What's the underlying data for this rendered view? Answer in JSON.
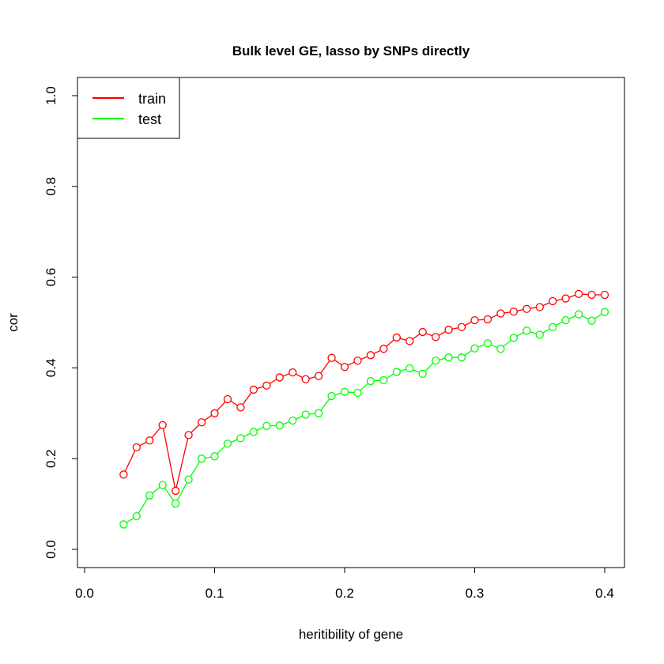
{
  "chart_data": {
    "type": "line",
    "title": "Bulk level GE, lasso by SNPs directly",
    "xlabel": "heritibility of gene",
    "ylabel": "cor",
    "xlim": [
      0.0,
      0.4
    ],
    "ylim": [
      0.0,
      1.0
    ],
    "x_ticks": [
      "0.0",
      "0.1",
      "0.2",
      "0.3",
      "0.4"
    ],
    "y_ticks": [
      "0.0",
      "0.2",
      "0.4",
      "0.6",
      "0.8",
      "1.0"
    ],
    "legend_position": "top-left",
    "grid": false,
    "x": [
      0.03,
      0.04,
      0.05,
      0.06,
      0.07,
      0.08,
      0.09,
      0.1,
      0.11,
      0.12,
      0.13,
      0.14,
      0.15,
      0.16,
      0.17,
      0.18,
      0.19,
      0.2,
      0.21,
      0.22,
      0.23,
      0.24,
      0.25,
      0.26,
      0.27,
      0.28,
      0.29,
      0.3,
      0.31,
      0.32,
      0.33,
      0.34,
      0.35,
      0.36,
      0.37,
      0.38,
      0.39,
      0.4
    ],
    "series": [
      {
        "name": "train",
        "color": "#ff0000",
        "values": [
          0.165,
          0.225,
          0.24,
          0.274,
          0.129,
          0.252,
          0.28,
          0.3,
          0.331,
          0.313,
          0.352,
          0.361,
          0.379,
          0.39,
          0.375,
          0.382,
          0.422,
          0.402,
          0.416,
          0.428,
          0.442,
          0.467,
          0.459,
          0.479,
          0.468,
          0.484,
          0.49,
          0.505,
          0.507,
          0.52,
          0.524,
          0.53,
          0.534,
          0.547,
          0.553,
          0.563,
          0.561,
          0.561
        ]
      },
      {
        "name": "test",
        "color": "#00ff00",
        "values": [
          0.055,
          0.073,
          0.119,
          0.142,
          0.101,
          0.154,
          0.2,
          0.205,
          0.233,
          0.245,
          0.259,
          0.272,
          0.273,
          0.284,
          0.297,
          0.3,
          0.338,
          0.347,
          0.345,
          0.371,
          0.373,
          0.391,
          0.399,
          0.387,
          0.416,
          0.423,
          0.423,
          0.443,
          0.454,
          0.442,
          0.466,
          0.482,
          0.473,
          0.49,
          0.505,
          0.518,
          0.504,
          0.523
        ]
      }
    ]
  }
}
